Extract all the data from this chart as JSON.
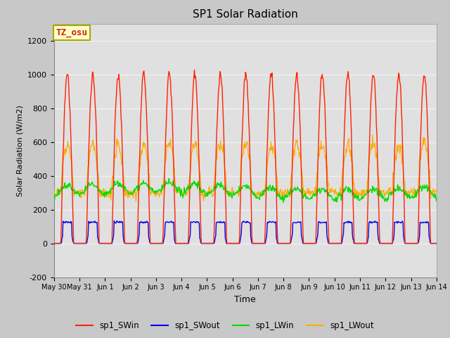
{
  "title": "SP1 Solar Radiation",
  "ylabel": "Solar Radiation (W/m2)",
  "xlabel": "Time",
  "ylim": [
    -200,
    1300
  ],
  "yticks": [
    -200,
    0,
    200,
    400,
    600,
    800,
    1000,
    1200
  ],
  "xtick_labels": [
    "May 30",
    "May 31",
    "Jun 1",
    "Jun 2",
    "Jun 3",
    "Jun 4",
    "Jun 5",
    "Jun 6",
    "Jun 7",
    "Jun 8",
    "Jun 9",
    "Jun 10",
    "Jun 11",
    "Jun 12",
    "Jun 13",
    "Jun 14"
  ],
  "annotation_text": "TZ_osu",
  "annotation_color": "#cc2200",
  "annotation_bg": "#ffffcc",
  "annotation_border": "#aaaa00",
  "colors": {
    "SWin": "#ff2200",
    "SWout": "#0000ee",
    "LWin": "#00dd00",
    "LWout": "#ffaa00"
  },
  "fig_bg": "#c8c8c8",
  "plot_bg": "#e0e0e0",
  "grid_color": "#f0f0f0",
  "title_fontsize": 11,
  "figsize": [
    6.4,
    4.8
  ],
  "dpi": 100
}
